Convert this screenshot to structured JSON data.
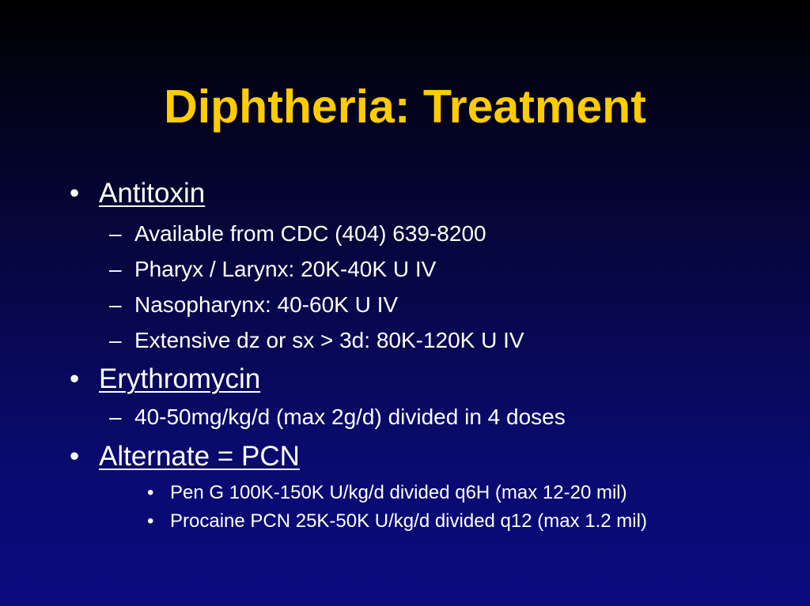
{
  "slide": {
    "title": "Diphtheria: Treatment",
    "colors": {
      "title": "#ffcc00",
      "text": "#ffffff",
      "background_top": "#000000",
      "background_bottom": "#0b0b80"
    },
    "bullet": "•",
    "dash": "–",
    "sections": [
      {
        "heading": "Antitoxin",
        "items": [
          "Available from CDC (404) 639-8200",
          "Pharyx / Larynx: 20K-40K U IV",
          "Nasopharynx: 40-60K U IV",
          "Extensive dz or sx > 3d: 80K-120K U IV"
        ]
      },
      {
        "heading": "Erythromycin",
        "items": [
          "40-50mg/kg/d (max 2g/d) divided in 4 doses"
        ]
      },
      {
        "heading": "Alternate = PCN",
        "subitems": [
          "Pen G 100K-150K U/kg/d divided q6H (max 12-20 mil)",
          "Procaine PCN 25K-50K U/kg/d divided q12 (max 1.2 mil)"
        ]
      }
    ]
  }
}
